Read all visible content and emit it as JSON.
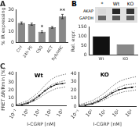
{
  "chart_data": [
    {
      "type": "bar",
      "title": "A",
      "categories": [
        "Ctrl",
        "24h PE",
        "CSQ",
        "ACT",
        "RyR/HRC"
      ],
      "values": [
        18,
        17,
        10,
        14,
        24
      ],
      "error": [
        1.0,
        1.0,
        0.8,
        0.8,
        2.0
      ],
      "color": "#888888",
      "ylabel": "% IR expressing",
      "ylim": [
        0,
        30
      ],
      "yticks": [
        0,
        10,
        20,
        30
      ],
      "grid": false,
      "annotations": [
        {
          "text": "**",
          "category": "RyR/HRC"
        },
        {
          "text": "*",
          "category": "CSQ"
        }
      ]
    },
    {
      "type": "bar",
      "title": "B",
      "categories": [
        "Wt",
        "KO"
      ],
      "values": [
        100,
        55
      ],
      "colors": [
        "#111111",
        "#888888"
      ],
      "ylabel": "Rel. expr.",
      "ylim": [
        0,
        150
      ],
      "yticks": [
        0,
        50,
        100,
        150
      ],
      "grid": false,
      "annotations": [
        {
          "text": "*"
        },
        {
          "text": "Wt"
        },
        {
          "text": "KO"
        },
        {
          "text": "AKAP"
        },
        {
          "text": "GAPDH"
        }
      ]
    },
    {
      "type": "line",
      "title": "Wt",
      "xlabel": "I-CGRP [nM]",
      "ylabel": "FRET ΔR/Rmin [%]",
      "log": "x",
      "series": [
        {
          "x": [
            0.1,
            0.3,
            1,
            3,
            10,
            30,
            100,
            300,
            1000,
            2000
          ],
          "values": [
            2,
            4,
            7,
            12,
            18,
            26,
            33,
            37,
            39,
            40
          ],
          "color": "#555555",
          "line_style": "dotted"
        },
        {
          "x": [
            0.1,
            0.3,
            1,
            3,
            10,
            30,
            100,
            300,
            1000,
            2000
          ],
          "values": [
            1,
            2.5,
            5,
            9,
            14,
            20,
            26,
            29,
            31,
            32
          ],
          "color": "#555555",
          "line_style": "dotted"
        },
        {
          "x": [
            0.1,
            0.3,
            1,
            3,
            10,
            30,
            100,
            300,
            1000,
            2000
          ],
          "values": [
            0.5,
            1.5,
            3,
            6,
            10,
            15,
            19,
            22,
            23,
            24
          ],
          "color": "#555555",
          "line_style": "dotted"
        },
        {
          "x": [
            0.3,
            1,
            3,
            10,
            30,
            100,
            300,
            1000
          ],
          "values": [
            1.5,
            3.5,
            7,
            13,
            19,
            24,
            27,
            28
          ],
          "color": "#111111",
          "line_style": "solid",
          "marker": "square"
        },
        {
          "x": [
            0.1,
            0.3,
            1,
            3,
            10,
            30,
            100,
            300,
            1000,
            2000
          ],
          "values": [
            0.8,
            2,
            4,
            8,
            13,
            19,
            24,
            27,
            28,
            29
          ],
          "color": "#333333",
          "line_style": "dashed"
        }
      ],
      "xlim": [
        0.1,
        2000
      ],
      "xticks": [
        {
          "value": 0.1,
          "label": "10⁻¹"
        },
        {
          "value": 1,
          "label": "10⁰"
        },
        {
          "value": 10,
          "label": "10¹"
        },
        {
          "value": 100,
          "label": "10²"
        },
        {
          "value": 1000,
          "label": "10³"
        }
      ],
      "ylim": [
        0,
        42
      ],
      "yticks": [
        0,
        10,
        20,
        30,
        40
      ],
      "grid": false,
      "annotations": [
        {
          "text": "C"
        }
      ]
    },
    {
      "type": "line",
      "title": "KO",
      "xlabel": "I-CGRP [nM]",
      "log": "x",
      "series": [
        {
          "x": [
            0.1,
            0.3,
            1,
            3,
            10,
            30,
            100,
            300,
            1000,
            2000
          ],
          "values": [
            2,
            4,
            7,
            11,
            17,
            24,
            30,
            33,
            35,
            36
          ],
          "color": "#555555",
          "line_style": "dotted"
        },
        {
          "x": [
            0.1,
            0.3,
            1,
            3,
            10,
            30,
            100,
            300,
            1000,
            2000
          ],
          "values": [
            1,
            2.5,
            4.5,
            8,
            13,
            18,
            23,
            26,
            27,
            28
          ],
          "color": "#555555",
          "line_style": "dotted"
        },
        {
          "x": [
            0.1,
            0.3,
            1,
            3,
            10,
            30,
            100,
            300,
            1000,
            2000
          ],
          "values": [
            0.4,
            1.2,
            2.5,
            5,
            8.5,
            13,
            16,
            18,
            19,
            20
          ],
          "color": "#555555",
          "line_style": "dotted"
        },
        {
          "x": [
            0.3,
            1,
            3,
            10,
            30,
            100,
            300,
            1000
          ],
          "values": [
            1.2,
            3,
            6,
            11,
            16,
            20,
            22,
            23
          ],
          "color": "#111111",
          "line_style": "solid",
          "marker": "square"
        },
        {
          "x": [
            0.1,
            0.3,
            1,
            3,
            10,
            30,
            100,
            300,
            1000,
            2000
          ],
          "values": [
            0.6,
            1.8,
            3.5,
            7,
            11,
            16,
            20,
            22,
            23,
            24
          ],
          "color": "#333333",
          "line_style": "dashed"
        }
      ],
      "xlim": [
        0.1,
        2000
      ],
      "xticks": [
        {
          "value": 0.1,
          "label": "10⁻¹"
        },
        {
          "value": 1,
          "label": "10⁰"
        },
        {
          "value": 10,
          "label": "10¹"
        },
        {
          "value": 100,
          "label": "10²"
        },
        {
          "value": 1000,
          "label": "10³"
        }
      ],
      "ylim": [
        0,
        42
      ],
      "yticks": [
        0,
        10,
        20,
        30,
        40
      ],
      "grid": false
    }
  ]
}
